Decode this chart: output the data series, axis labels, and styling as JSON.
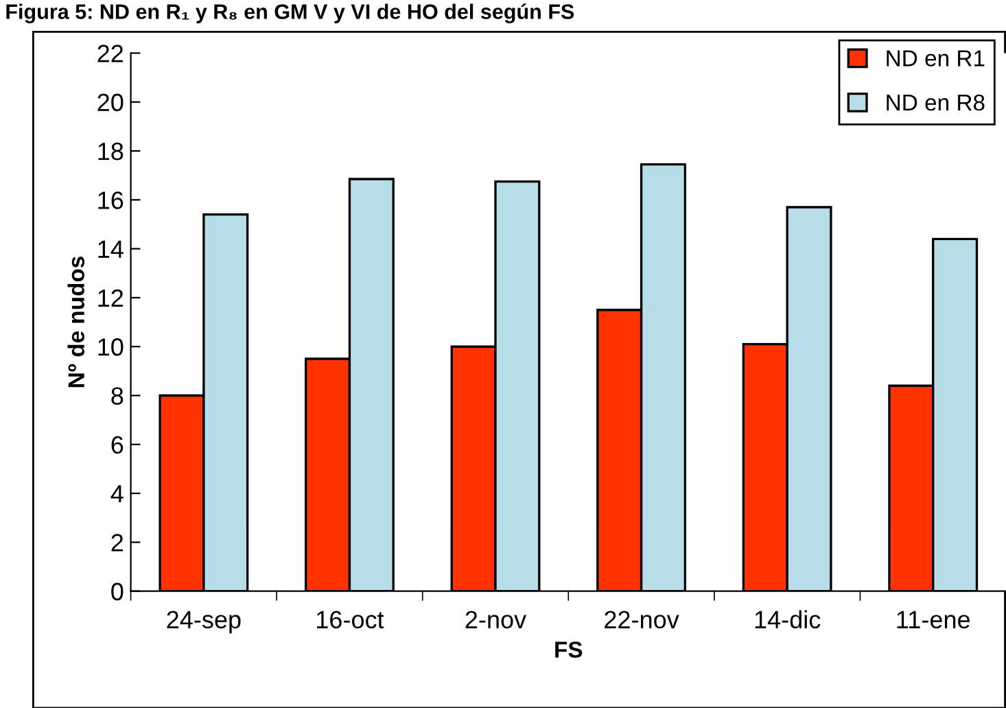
{
  "chart_data": {
    "type": "bar",
    "title": "Figura 5: ND en R₁ y R₈ en GM V y VI de HO del según FS",
    "xlabel": "FS",
    "ylabel": "Nº de nudos",
    "categories": [
      "24-sep",
      "16-oct",
      "2-nov",
      "22-nov",
      "14-dic",
      "11-ene"
    ],
    "series": [
      {
        "name": "ND en R1",
        "color": "#ff3300",
        "values": [
          8.0,
          9.5,
          10.0,
          11.5,
          10.1,
          8.4
        ]
      },
      {
        "name": "ND en R8",
        "color": "#b7dde8",
        "values": [
          15.4,
          16.85,
          16.75,
          17.45,
          15.7,
          14.4
        ]
      }
    ],
    "ylim": [
      0,
      22
    ],
    "yticks": [
      0,
      2,
      4,
      6,
      8,
      10,
      12,
      14,
      16,
      18,
      20,
      22
    ],
    "grid": false,
    "legend": "top right"
  }
}
